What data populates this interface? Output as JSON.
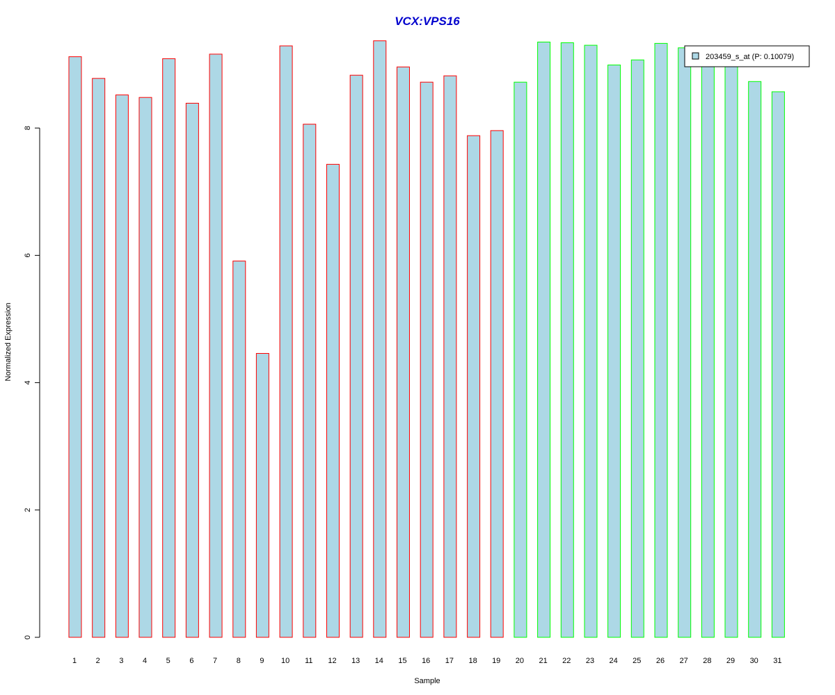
{
  "chart_data": {
    "type": "bar",
    "title": "VCX:VPS16",
    "xlabel": "Sample",
    "ylabel": "Normalized Expression",
    "ylim": [
      0,
      9.6
    ],
    "yticks": [
      0,
      2,
      4,
      6,
      8
    ],
    "grid": false,
    "legend_position": "top-right",
    "categories": [
      "1",
      "2",
      "3",
      "4",
      "5",
      "6",
      "7",
      "8",
      "9",
      "10",
      "11",
      "12",
      "13",
      "14",
      "15",
      "16",
      "17",
      "18",
      "19",
      "20",
      "21",
      "22",
      "23",
      "24",
      "25",
      "26",
      "27",
      "28",
      "29",
      "30",
      "31"
    ],
    "series": [
      {
        "name": "203459_s_at (P: 0.10079)",
        "values": [
          9.12,
          8.78,
          8.52,
          8.48,
          9.09,
          8.39,
          9.16,
          5.91,
          4.46,
          9.29,
          8.06,
          7.43,
          8.83,
          9.37,
          8.96,
          8.72,
          8.82,
          7.88,
          7.96,
          8.72,
          9.35,
          9.34,
          9.3,
          8.99,
          9.07,
          9.33,
          9.26,
          9.1,
          9.05,
          8.73,
          8.57
        ],
        "groups": [
          "red",
          "red",
          "red",
          "red",
          "red",
          "red",
          "red",
          "red",
          "red",
          "red",
          "red",
          "red",
          "red",
          "red",
          "red",
          "red",
          "red",
          "red",
          "red",
          "green",
          "green",
          "green",
          "green",
          "green",
          "green",
          "green",
          "green",
          "green",
          "green",
          "green",
          "green"
        ]
      }
    ],
    "colors": {
      "fill": "#add8e6",
      "border_red": "#ff0000",
      "border_green": "#00ff00",
      "title": "#0000cd"
    }
  }
}
